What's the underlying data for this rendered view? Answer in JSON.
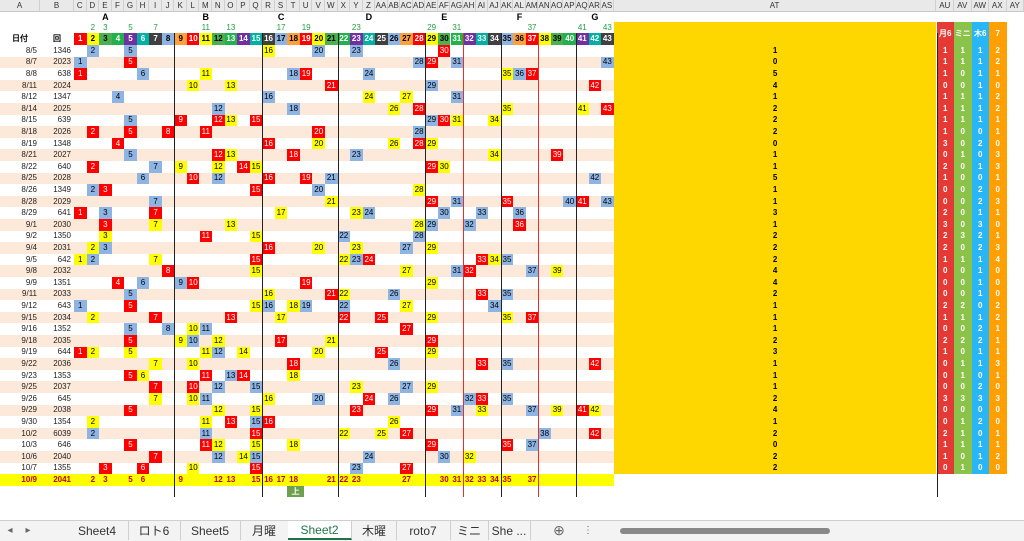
{
  "column_letters": [
    "A",
    "B",
    "C",
    "D",
    "E",
    "F",
    "G",
    "H",
    "I",
    "J",
    "K",
    "L",
    "M",
    "N",
    "O",
    "P",
    "Q",
    "R",
    "S",
    "T",
    "U",
    "V",
    "W",
    "X",
    "Y",
    "Z",
    "AA",
    "AB",
    "AC",
    "AD",
    "AE",
    "AF",
    "AG",
    "AH",
    "AI",
    "AJ",
    "AK",
    "AL",
    "AM",
    "AN",
    "AO",
    "AP",
    "AQ",
    "AR",
    "AS",
    "AT",
    "AU",
    "AV",
    "AW",
    "AX",
    "AY"
  ],
  "group_labels": [
    {
      "col": 3,
      "text": "A"
    },
    {
      "col": 11,
      "text": "B"
    },
    {
      "col": 17,
      "text": "C"
    },
    {
      "col": 24,
      "text": "D"
    },
    {
      "col": 30,
      "text": "E"
    },
    {
      "col": 36,
      "text": "F"
    },
    {
      "col": 42,
      "text": "G"
    }
  ],
  "header_row": {
    "date_label": "日付",
    "round_label": "回",
    "numbers": [
      "1",
      "2",
      "3",
      "4",
      "5",
      "6",
      "7",
      "8",
      "9",
      "10",
      "11",
      "12",
      "13",
      "14",
      "15",
      "16",
      "17",
      "18",
      "19",
      "20",
      "21",
      "22",
      "23",
      "24",
      "25",
      "26",
      "27",
      "28",
      "29",
      "30",
      "31",
      "32",
      "33",
      "34",
      "35",
      "36",
      "37",
      "38",
      "39",
      "40",
      "41",
      "42",
      "43"
    ],
    "top_numbers": [
      "2",
      "3",
      "5",
      "7",
      "11",
      "13",
      "17",
      "19",
      "23",
      "29",
      "31",
      "37",
      "41",
      "43"
    ],
    "summary_labels": [
      "",
      "月6",
      "ミニ",
      "木6",
      "7"
    ],
    "summary_colors": [
      "#ffd700",
      "#e53935",
      "#8bc34a",
      "#29b6f6",
      "#ffa000"
    ]
  },
  "rows": [
    {
      "date": "8/5",
      "round": "1346",
      "hits": [
        2,
        5,
        16,
        20,
        23,
        30
      ],
      "summary": [
        "1",
        "1",
        "1",
        "1",
        "2"
      ]
    },
    {
      "date": "8/7",
      "round": "2023",
      "hits": [
        1,
        5,
        28,
        29,
        31,
        43
      ],
      "summary": [
        "0",
        "1",
        "1",
        "1",
        "2"
      ]
    },
    {
      "date": "8/8",
      "round": "638",
      "hits": [
        1,
        6,
        11,
        18,
        19,
        24,
        35,
        36,
        37
      ],
      "summary": [
        "5",
        "1",
        "0",
        "1",
        "1"
      ]
    },
    {
      "date": "8/11",
      "round": "2024",
      "hits": [
        10,
        13,
        21,
        29,
        42
      ],
      "summary": [
        "4",
        "0",
        "0",
        "1",
        "0"
      ]
    },
    {
      "date": "8/12",
      "round": "1347",
      "hits": [
        4,
        16,
        24,
        27,
        31
      ],
      "summary": [
        "1",
        "1",
        "1",
        "1",
        "2"
      ]
    },
    {
      "date": "8/14",
      "round": "2025",
      "hits": [
        12,
        18,
        26,
        28,
        35,
        41,
        43
      ],
      "summary": [
        "2",
        "1",
        "1",
        "1",
        "2"
      ]
    },
    {
      "date": "8/15",
      "round": "639",
      "hits": [
        5,
        9,
        12,
        13,
        15,
        29,
        30,
        31,
        34
      ],
      "summary": [
        "2",
        "1",
        "1",
        "1",
        "1"
      ]
    },
    {
      "date": "8/18",
      "round": "2026",
      "hits": [
        2,
        5,
        8,
        11,
        20,
        28
      ],
      "summary": [
        "2",
        "1",
        "0",
        "0",
        "1"
      ]
    },
    {
      "date": "8/19",
      "round": "1348",
      "hits": [
        4,
        16,
        20,
        26,
        28,
        29
      ],
      "summary": [
        "0",
        "3",
        "0",
        "2",
        "0"
      ]
    },
    {
      "date": "8/21",
      "round": "2027",
      "hits": [
        5,
        12,
        13,
        18,
        23,
        34,
        39
      ],
      "summary": [
        "1",
        "0",
        "1",
        "0",
        "3"
      ]
    },
    {
      "date": "8/22",
      "round": "640",
      "hits": [
        2,
        7,
        9,
        12,
        14,
        15,
        29,
        30
      ],
      "summary": [
        "1",
        "2",
        "0",
        "1",
        "3"
      ]
    },
    {
      "date": "8/25",
      "round": "2028",
      "hits": [
        6,
        10,
        12,
        16,
        19,
        21,
        42
      ],
      "summary": [
        "5",
        "1",
        "0",
        "0",
        "1"
      ]
    },
    {
      "date": "8/26",
      "round": "1349",
      "hits": [
        2,
        3,
        15,
        20,
        28
      ],
      "summary": [
        "1",
        "0",
        "0",
        "2",
        "0"
      ]
    },
    {
      "date": "8/28",
      "round": "2029",
      "hits": [
        7,
        21,
        29,
        31,
        35,
        40,
        41,
        43
      ],
      "summary": [
        "1",
        "0",
        "0",
        "2",
        "3"
      ]
    },
    {
      "date": "8/29",
      "round": "641",
      "hits": [
        1,
        3,
        7,
        17,
        23,
        24,
        30,
        33,
        36
      ],
      "summary": [
        "3",
        "2",
        "0",
        "1",
        "1"
      ]
    },
    {
      "date": "9/1",
      "round": "2030",
      "hits": [
        3,
        7,
        13,
        28,
        29,
        32,
        36
      ],
      "summary": [
        "1",
        "3",
        "0",
        "3",
        "0"
      ]
    },
    {
      "date": "9/2",
      "round": "1350",
      "hits": [
        3,
        11,
        15,
        22,
        28
      ],
      "summary": [
        "2",
        "2",
        "3",
        "2",
        "1"
      ]
    },
    {
      "date": "9/4",
      "round": "2031",
      "hits": [
        2,
        3,
        16,
        20,
        23,
        27,
        29
      ],
      "summary": [
        "2",
        "2",
        "0",
        "2",
        "3"
      ]
    },
    {
      "date": "9/5",
      "round": "642",
      "hits": [
        1,
        2,
        7,
        15,
        22,
        23,
        24,
        33,
        34,
        35
      ],
      "summary": [
        "2",
        "1",
        "1",
        "1",
        "4"
      ]
    },
    {
      "date": "9/8",
      "round": "2032",
      "hits": [
        8,
        15,
        27,
        31,
        32,
        37,
        39
      ],
      "summary": [
        "4",
        "0",
        "0",
        "1",
        "0"
      ]
    },
    {
      "date": "9/9",
      "round": "1351",
      "hits": [
        4,
        6,
        9,
        10,
        19,
        29
      ],
      "summary": [
        "4",
        "0",
        "0",
        "1",
        "0"
      ]
    },
    {
      "date": "9/11",
      "round": "2033",
      "hits": [
        5,
        16,
        21,
        22,
        26,
        33,
        35
      ],
      "summary": [
        "2",
        "0",
        "0",
        "1",
        "0"
      ]
    },
    {
      "date": "9/12",
      "round": "643",
      "hits": [
        1,
        5,
        15,
        16,
        18,
        19,
        22,
        27,
        34
      ],
      "summary": [
        "1",
        "2",
        "2",
        "0",
        "2"
      ]
    },
    {
      "date": "9/15",
      "round": "2034",
      "hits": [
        2,
        7,
        13,
        17,
        22,
        25,
        29,
        35,
        37
      ],
      "summary": [
        "1",
        "1",
        "1",
        "1",
        "2"
      ]
    },
    {
      "date": "9/16",
      "round": "1352",
      "hits": [
        5,
        8,
        10,
        11,
        27
      ],
      "summary": [
        "1",
        "0",
        "0",
        "2",
        "1"
      ]
    },
    {
      "date": "9/18",
      "round": "2035",
      "hits": [
        5,
        9,
        10,
        12,
        17,
        21,
        29
      ],
      "summary": [
        "2",
        "2",
        "2",
        "2",
        "1"
      ]
    },
    {
      "date": "9/19",
      "round": "644",
      "hits": [
        1,
        2,
        5,
        11,
        12,
        14,
        20,
        25,
        29
      ],
      "summary": [
        "3",
        "1",
        "0",
        "1",
        "1"
      ]
    },
    {
      "date": "9/22",
      "round": "2036",
      "hits": [
        7,
        10,
        18,
        26,
        33,
        35,
        42
      ],
      "summary": [
        "1",
        "0",
        "1",
        "1",
        "3"
      ]
    },
    {
      "date": "9/23",
      "round": "1353",
      "hits": [
        5,
        6,
        11,
        13,
        14,
        18
      ],
      "summary": [
        "1",
        "0",
        "1",
        "0",
        "1"
      ]
    },
    {
      "date": "9/25",
      "round": "2037",
      "hits": [
        7,
        10,
        12,
        15,
        23,
        27,
        29
      ],
      "summary": [
        "1",
        "0",
        "0",
        "2",
        "0"
      ]
    },
    {
      "date": "9/26",
      "round": "645",
      "hits": [
        7,
        10,
        11,
        16,
        20,
        24,
        26,
        32,
        33,
        35
      ],
      "summary": [
        "2",
        "3",
        "3",
        "3",
        "3"
      ]
    },
    {
      "date": "9/29",
      "round": "2038",
      "hits": [
        5,
        12,
        15,
        23,
        29,
        31,
        33,
        37,
        39,
        41,
        42
      ],
      "summary": [
        "4",
        "0",
        "0",
        "0",
        "0"
      ]
    },
    {
      "date": "9/30",
      "round": "1354",
      "hits": [
        2,
        11,
        13,
        15,
        16,
        26
      ],
      "summary": [
        "1",
        "0",
        "1",
        "2",
        "0"
      ]
    },
    {
      "date": "10/2",
      "round": "6039",
      "hits": [
        2,
        11,
        15,
        22,
        25,
        27,
        38,
        42
      ],
      "summary": [
        "2",
        "2",
        "1",
        "0",
        "1"
      ]
    },
    {
      "date": "10/3",
      "round": "646",
      "hits": [
        5,
        11,
        12,
        15,
        18,
        29,
        35,
        37
      ],
      "summary": [
        "0",
        "1",
        "1",
        "1",
        "1"
      ]
    },
    {
      "date": "10/6",
      "round": "2040",
      "hits": [
        7,
        12,
        14,
        15,
        24,
        30,
        32
      ],
      "summary": [
        "2",
        "1",
        "0",
        "1",
        "2"
      ]
    },
    {
      "date": "10/7",
      "round": "1355",
      "hits": [
        3,
        6,
        10,
        15,
        23,
        27
      ],
      "summary": [
        "2",
        "0",
        "1",
        "0",
        "0"
      ]
    }
  ],
  "today_row": {
    "date": "10/9",
    "round": "2041",
    "hits": [
      2,
      3,
      5,
      6,
      9,
      12,
      13,
      15,
      16,
      17,
      18,
      21,
      22,
      23,
      27,
      30,
      31,
      32,
      33,
      34,
      35,
      37
    ]
  },
  "extra_cell": {
    "text": "上"
  },
  "tabs": [
    "Sheet4",
    "ロト6",
    "Sheet5",
    "月曜",
    "Sheet2",
    "木曜",
    "roto7",
    "ミニ",
    "She ..."
  ],
  "active_tab": "Sheet2",
  "nav": {
    "prev": "◂",
    "next": "▸",
    "add": "⊕",
    "more": "⋮"
  },
  "colors": {
    "red": "#ff0000",
    "yellow": "#ffff00",
    "blue": "#8eb4e3",
    "green": "#4caf50",
    "orange": "#ffa040",
    "header_green": "#22b14c",
    "header_purple": "#7030a0",
    "header_teal": "#00b0a0",
    "header_dark": "#404040",
    "row_alt": "#fde9d9",
    "today": "#ffff00"
  }
}
